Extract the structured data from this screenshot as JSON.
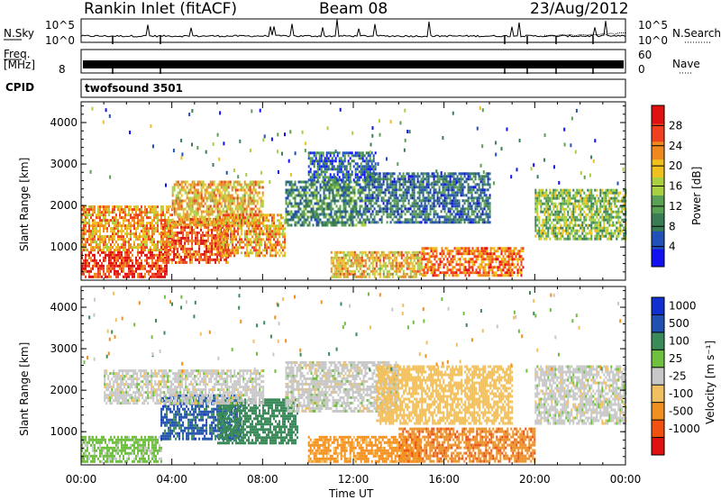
{
  "header": {
    "station": "Rankin Inlet (fitACF)",
    "beam": "Beam 08",
    "date": "23/Aug/2012"
  },
  "top_panels": {
    "nsky_label": "N.Sky",
    "nsky_ticks": [
      "10^5",
      "10^0"
    ],
    "nsearch_label": "N.Search",
    "nsearch_ticks": [
      "10^5",
      "10^0"
    ],
    "freq_label": "Freq.",
    "freq_unit": "[MHz]",
    "freq_tick": "8",
    "nave_label": "Nave",
    "nave_ticks": [
      "60",
      "0"
    ],
    "cpid_label": "CPID",
    "cpid_value": "twofsound 3501"
  },
  "colors": {
    "power_scale": [
      "#1010f0",
      "#2050b8",
      "#3a7d55",
      "#5aa055",
      "#a8d040",
      "#f0c020",
      "#f08820",
      "#f04020",
      "#e01010"
    ],
    "velocity_scale": [
      "#e01010",
      "#f05010",
      "#f09020",
      "#f0c060",
      "#c8c8c8",
      "#70c040",
      "#3a8a5a",
      "#2050b0",
      "#1030d0"
    ]
  },
  "chart_data": [
    {
      "type": "heatmap",
      "name": "power",
      "ylabel": "Slant Range [km]",
      "xlabel": "",
      "xlim": [
        "00:00",
        "00:00"
      ],
      "ylim": [
        200,
        4500
      ],
      "y_ticks": [
        "1000",
        "2000",
        "3000",
        "4000"
      ],
      "colorbar_label": "Power [dB]",
      "colorbar_ticks": [
        "4",
        "8",
        "12",
        "16",
        "20",
        "24",
        "28"
      ],
      "colorbar_range": [
        0,
        32
      ],
      "regions": [
        {
          "t0": 0.0,
          "t1": 3.8,
          "r0": 250,
          "r1": 900,
          "value": 28
        },
        {
          "t0": 3.5,
          "t1": 6.5,
          "r0": 600,
          "r1": 1700,
          "value": 26
        },
        {
          "t0": 0.0,
          "t1": 4.0,
          "r0": 900,
          "r1": 2000,
          "value": 22
        },
        {
          "t0": 4.0,
          "t1": 8.0,
          "r0": 1500,
          "r1": 2600,
          "value": 20
        },
        {
          "t0": 6.0,
          "t1": 9.0,
          "r0": 800,
          "r1": 1800,
          "value": 22
        },
        {
          "t0": 9.0,
          "t1": 12.5,
          "r0": 1500,
          "r1": 2600,
          "value": 10
        },
        {
          "t0": 11.0,
          "t1": 15.0,
          "r0": 300,
          "r1": 900,
          "value": 20
        },
        {
          "t0": 12.5,
          "t1": 18.0,
          "r0": 1600,
          "r1": 2800,
          "value": 8
        },
        {
          "t0": 15.0,
          "t1": 19.5,
          "r0": 300,
          "r1": 1000,
          "value": 24
        },
        {
          "t0": 20.0,
          "t1": 24.0,
          "r0": 1200,
          "r1": 2400,
          "value": 14
        },
        {
          "t0": 10.0,
          "t1": 13.0,
          "r0": 2600,
          "r1": 3300,
          "value": 7
        }
      ]
    },
    {
      "type": "heatmap",
      "name": "velocity",
      "ylabel": "Slant Range [km]",
      "xlabel": "Time UT",
      "x_ticks": [
        "00:00",
        "04:00",
        "08:00",
        "12:00",
        "16:00",
        "20:00",
        "00:00"
      ],
      "ylim": [
        200,
        4500
      ],
      "y_ticks": [
        "1000",
        "2000",
        "3000",
        "4000"
      ],
      "colorbar_label": "Velocity [m s⁻¹]",
      "colorbar_ticks": [
        "1000",
        "500",
        "100",
        "25",
        "-25",
        "-100",
        "-500",
        "-1000"
      ],
      "regions": [
        {
          "t0": 0.0,
          "t1": 3.5,
          "r0": 250,
          "r1": 900,
          "value": 40
        },
        {
          "t0": 3.5,
          "t1": 7.0,
          "r0": 800,
          "r1": 1900,
          "value": 700
        },
        {
          "t0": 6.0,
          "t1": 9.5,
          "r0": 700,
          "r1": 1800,
          "value": 200
        },
        {
          "t0": 1.0,
          "t1": 8.0,
          "r0": 1700,
          "r1": 2500,
          "value": 0
        },
        {
          "t0": 9.0,
          "t1": 14.0,
          "r0": 1500,
          "r1": 2700,
          "value": 0
        },
        {
          "t0": 10.0,
          "t1": 15.0,
          "r0": 300,
          "r1": 900,
          "value": -150
        },
        {
          "t0": 14.0,
          "t1": 20.0,
          "r0": 300,
          "r1": 1100,
          "value": -400
        },
        {
          "t0": 13.0,
          "t1": 19.0,
          "r0": 1200,
          "r1": 2600,
          "value": -60
        },
        {
          "t0": 20.0,
          "t1": 24.0,
          "r0": 1200,
          "r1": 2600,
          "value": 0
        }
      ]
    }
  ]
}
